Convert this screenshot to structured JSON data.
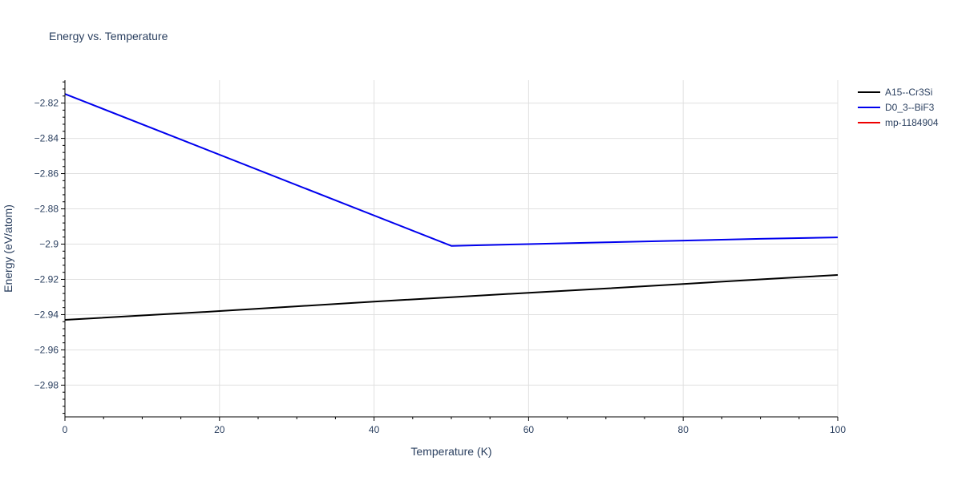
{
  "chart_data": {
    "type": "line",
    "title": "Energy vs. Temperature",
    "xlabel": "Temperature (K)",
    "ylabel": "Energy (eV/atom)",
    "xlim": [
      0,
      100
    ],
    "ylim": [
      -2.998,
      -2.807
    ],
    "xticks": [
      0,
      20,
      40,
      60,
      80,
      100
    ],
    "xtick_labels": [
      "0",
      "20",
      "40",
      "60",
      "80",
      "100"
    ],
    "yticks": [
      -2.82,
      -2.84,
      -2.86,
      -2.88,
      -2.9,
      -2.92,
      -2.94,
      -2.96,
      -2.98
    ],
    "ytick_labels": [
      "−2.82",
      "−2.84",
      "−2.86",
      "−2.88",
      "−2.9",
      "−2.92",
      "−2.94",
      "−2.96",
      "−2.98"
    ],
    "grid": true,
    "legend_position": "top-right",
    "series": [
      {
        "name": "A15--Cr3Si",
        "color": "#000000",
        "x": [
          0,
          10,
          20,
          30,
          40,
          50,
          60,
          70,
          80,
          90,
          100
        ],
        "y": [
          -2.943,
          -2.9405,
          -2.938,
          -2.9353,
          -2.9326,
          -2.9301,
          -2.9276,
          -2.9252,
          -2.9226,
          -2.92,
          -2.9175
        ]
      },
      {
        "name": "D0_3--BiF3",
        "color": "#0000ee",
        "x": [
          0,
          50,
          60,
          70,
          80,
          90,
          100
        ],
        "y": [
          -2.8148,
          -2.901,
          -2.9,
          -2.899,
          -2.898,
          -2.897,
          -2.8962
        ]
      },
      {
        "name": "mp-1184904",
        "color": "#ee0000",
        "x": [],
        "y": []
      }
    ]
  }
}
